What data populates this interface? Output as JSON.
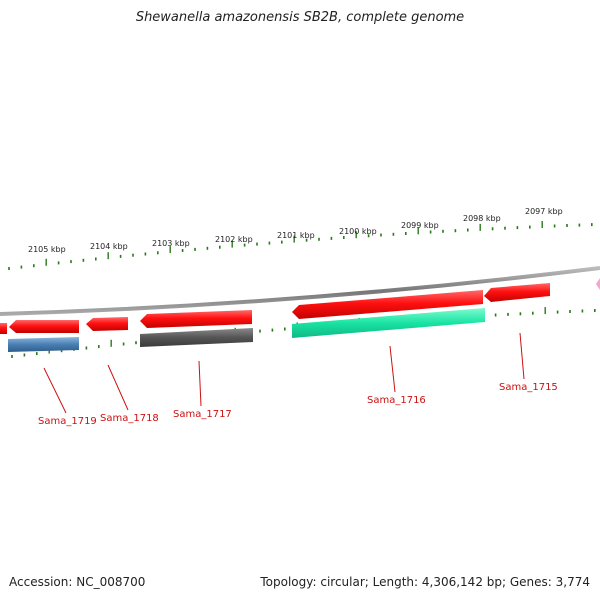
{
  "title": "Shewanella amazonensis SB2B, complete genome",
  "footer": {
    "accession": "Accession: NC_008700",
    "topology": "Topology: circular; Length: 4,306,142 bp; Genes: 3,774"
  },
  "scale": {
    "unit": "kbp",
    "ticks": [
      "2105 kbp",
      "2104 kbp",
      "2103 kbp",
      "2102 kbp",
      "2101 kbp",
      "2100 kbp",
      "2099 kbp",
      "2098 kbp",
      "2097 kbp"
    ]
  },
  "colors": {
    "gene_forward": "#ff1111",
    "gene_blue": "#4a7fb3",
    "gene_gray": "#555555",
    "gene_green": "#19e3a3",
    "gene_pink": "#f3a6cc",
    "backbone": "#888888",
    "tick": "#2a7a1a",
    "label": "#cc1111"
  },
  "genes": [
    "Sama_1719",
    "Sama_1718",
    "Sama_1717",
    "Sama_1716",
    "Sama_1715"
  ]
}
